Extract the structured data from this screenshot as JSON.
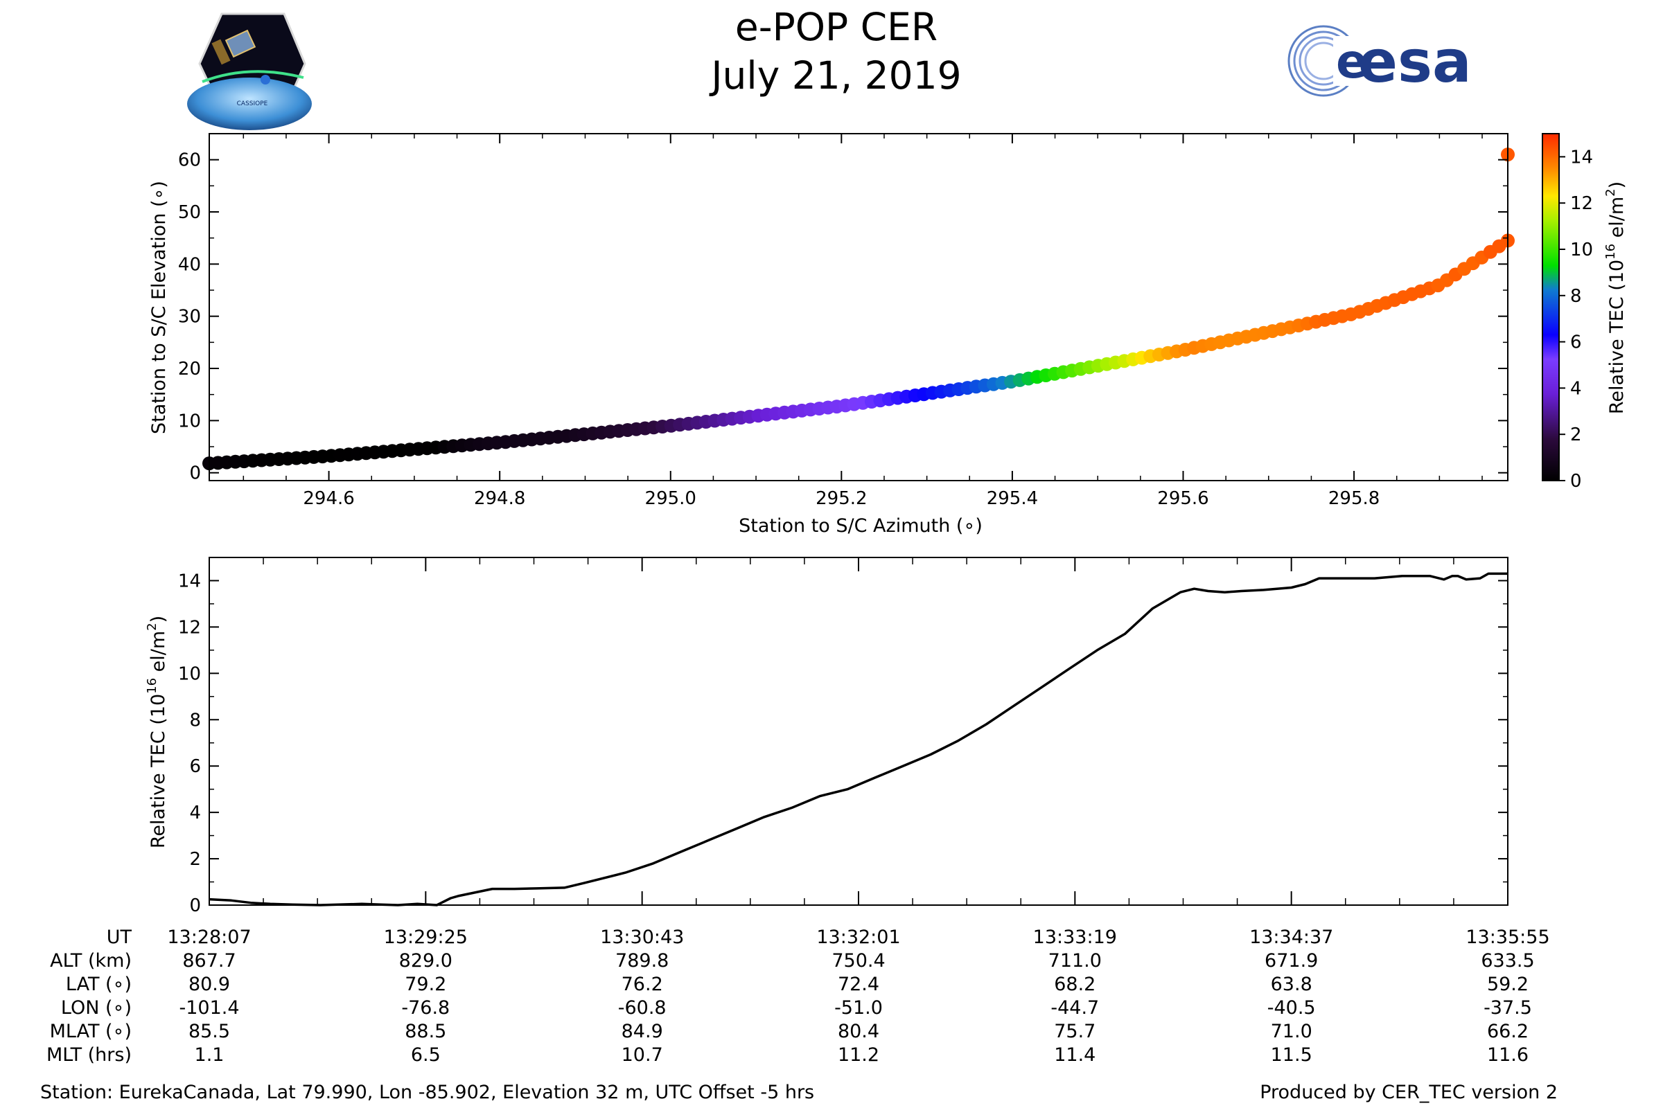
{
  "header": {
    "title_line1": "e-POP CER",
    "title_line2": "July 21, 2019",
    "cassiope_logo_text": "CASSIOPE",
    "esa_logo_text": "esa"
  },
  "colors": {
    "esa_blue": "#1f3c88",
    "line": "#000000",
    "axis": "#000000"
  },
  "chart_data": [
    {
      "type": "scatter",
      "title": "",
      "xlabel": "Station to S/C Azimuth (∘)",
      "ylabel": "Station to S/C Elevation (∘)",
      "xlim": [
        294.46,
        295.98
      ],
      "ylim": [
        -1.5,
        65
      ],
      "x_ticks": [
        294.6,
        294.8,
        295.0,
        295.2,
        295.4,
        295.6,
        295.8
      ],
      "x_tick_labels": [
        "294.6",
        "294.8",
        "295.0",
        "295.2",
        "295.4",
        "295.6",
        "295.8"
      ],
      "y_ticks": [
        0,
        10,
        20,
        30,
        40,
        50,
        60
      ],
      "y_tick_labels": [
        "0",
        "10",
        "20",
        "30",
        "40",
        "50",
        "60"
      ],
      "colorbar": {
        "label_prefix": "Relative TEC (10",
        "label_exp": "16",
        "label_unit": " el/m",
        "label_unit_exp": "2",
        "label_suffix": ")",
        "range": [
          0,
          15
        ],
        "ticks": [
          0,
          2,
          4,
          6,
          8,
          10,
          12,
          14
        ],
        "tick_labels": [
          "0",
          "2",
          "4",
          "6",
          "8",
          "10",
          "12",
          "14"
        ],
        "colormap": "gnuplot2"
      },
      "curve_points": [
        {
          "azimuth": 294.46,
          "elevation": 1.8
        },
        {
          "azimuth": 294.6,
          "elevation": 3.2
        },
        {
          "azimuth": 294.8,
          "elevation": 5.8
        },
        {
          "azimuth": 295.0,
          "elevation": 9.0
        },
        {
          "azimuth": 295.2,
          "elevation": 12.8
        },
        {
          "azimuth": 295.4,
          "elevation": 17.5
        },
        {
          "azimuth": 295.6,
          "elevation": 23.5
        },
        {
          "azimuth": 295.8,
          "elevation": 30.5
        },
        {
          "azimuth": 295.9,
          "elevation": 36.0
        },
        {
          "azimuth": 295.98,
          "elevation": 44.5
        }
      ],
      "outlier_point": {
        "azimuth": 295.98,
        "elevation": 61.0,
        "tec": 14.3
      }
    },
    {
      "type": "line",
      "title": "",
      "xlabel": "",
      "ylabel_prefix": "Relative TEC (10",
      "ylabel_exp": "16",
      "ylabel_unit": " el/m",
      "ylabel_unit_exp": "2",
      "ylabel_suffix": ")",
      "xlim_seconds": [
        0,
        468
      ],
      "ylim": [
        0,
        15
      ],
      "y_ticks": [
        0,
        2,
        4,
        6,
        8,
        10,
        12,
        14
      ],
      "y_tick_labels": [
        "0",
        "2",
        "4",
        "6",
        "8",
        "10",
        "12",
        "14"
      ],
      "x_major_ticks_seconds": [
        0,
        78,
        156,
        234,
        312,
        390,
        468
      ],
      "series": [
        {
          "name": "Relative TEC",
          "t": [
            0,
            8,
            15,
            22,
            30,
            40,
            55,
            62,
            68,
            75,
            82,
            87,
            90,
            96,
            102,
            110,
            118,
            128,
            135,
            140,
            150,
            160,
            170,
            180,
            190,
            200,
            210,
            220,
            230,
            240,
            250,
            260,
            270,
            280,
            290,
            300,
            310,
            320,
            330,
            340,
            350,
            355,
            360,
            366,
            372,
            380,
            390,
            395,
            400,
            410,
            420,
            430,
            440,
            445,
            448,
            450,
            453,
            458,
            461,
            464,
            468
          ],
          "values": [
            0.25,
            0.2,
            0.1,
            0.05,
            0.02,
            0.0,
            0.05,
            0.02,
            0.0,
            0.05,
            0.0,
            0.3,
            0.4,
            0.55,
            0.7,
            0.7,
            0.72,
            0.75,
            0.95,
            1.1,
            1.4,
            1.8,
            2.3,
            2.8,
            3.3,
            3.8,
            4.2,
            4.7,
            5.0,
            5.5,
            6.0,
            6.5,
            7.1,
            7.8,
            8.6,
            9.4,
            10.2,
            11.0,
            11.7,
            12.8,
            13.5,
            13.65,
            13.55,
            13.5,
            13.55,
            13.6,
            13.7,
            13.85,
            14.1,
            14.1,
            14.1,
            14.2,
            14.2,
            14.05,
            14.2,
            14.2,
            14.05,
            14.1,
            14.3,
            14.3,
            14.3
          ]
        }
      ]
    }
  ],
  "ephemeris": {
    "row_labels": [
      "UT",
      "ALT (km)",
      "LAT (∘)",
      "LON (∘)",
      "MLAT (∘)",
      "MLT (hrs)"
    ],
    "columns": [
      {
        "UT": "13:28:07",
        "ALT": "867.7",
        "LAT": "80.9",
        "LON": "-101.4",
        "MLAT": "85.5",
        "MLT": "1.1"
      },
      {
        "UT": "13:29:25",
        "ALT": "829.0",
        "LAT": "79.2",
        "LON": "-76.8",
        "MLAT": "88.5",
        "MLT": "6.5"
      },
      {
        "UT": "13:30:43",
        "ALT": "789.8",
        "LAT": "76.2",
        "LON": "-60.8",
        "MLAT": "84.9",
        "MLT": "10.7"
      },
      {
        "UT": "13:32:01",
        "ALT": "750.4",
        "LAT": "72.4",
        "LON": "-51.0",
        "MLAT": "80.4",
        "MLT": "11.2"
      },
      {
        "UT": "13:33:19",
        "ALT": "711.0",
        "LAT": "68.2",
        "LON": "-44.7",
        "MLAT": "75.7",
        "MLT": "11.4"
      },
      {
        "UT": "13:34:37",
        "ALT": "671.9",
        "LAT": "63.8",
        "LON": "-40.5",
        "MLAT": "71.0",
        "MLT": "11.5"
      },
      {
        "UT": "13:35:55",
        "ALT": "633.5",
        "LAT": "59.2",
        "LON": "-37.5",
        "MLAT": "66.2",
        "MLT": "11.6"
      }
    ]
  },
  "footer": {
    "station_info": "Station: EurekaCanada, Lat 79.990, Lon -85.902, Elevation 32 m, UTC Offset -5 hrs",
    "produced_by": "Produced by CER_TEC version 2"
  }
}
